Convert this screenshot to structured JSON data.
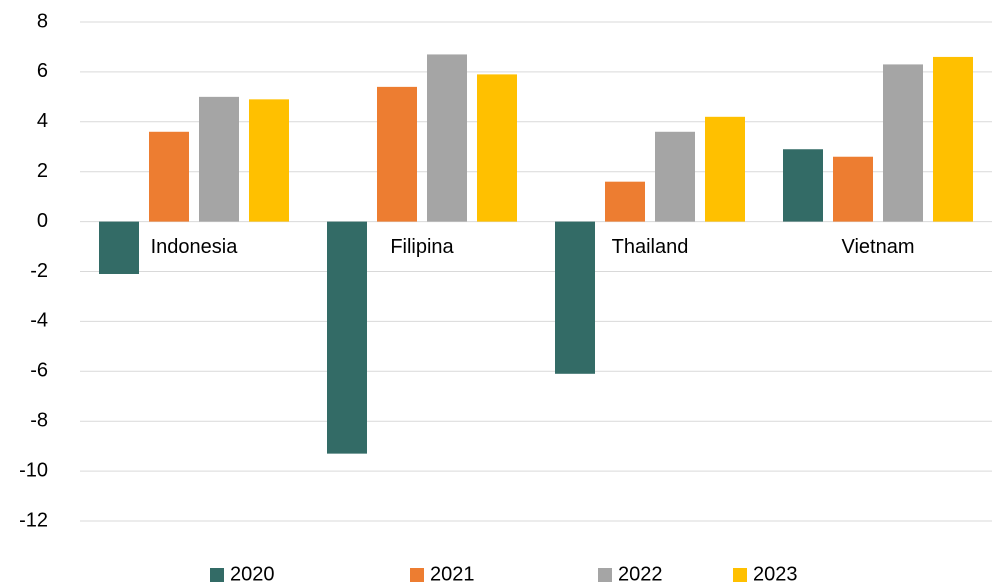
{
  "chart_data": {
    "type": "bar",
    "categories": [
      "Indonesia",
      "Filipina",
      "Thailand",
      "Vietnam"
    ],
    "series": [
      {
        "name": "2020",
        "color": "#336b66",
        "values": [
          -2.1,
          -9.3,
          -6.1,
          2.9
        ]
      },
      {
        "name": "2021",
        "color": "#ed7d31",
        "values": [
          3.6,
          5.4,
          1.6,
          2.6
        ]
      },
      {
        "name": "2022",
        "color": "#a5a5a5",
        "values": [
          5.0,
          6.7,
          3.6,
          6.3
        ]
      },
      {
        "name": "2023",
        "color": "#ffc000",
        "values": [
          4.9,
          5.9,
          4.2,
          6.6
        ]
      }
    ],
    "ylim": [
      -12,
      8
    ],
    "yticks": [
      -12,
      -10,
      -8,
      -6,
      -4,
      -2,
      0,
      2,
      4,
      6,
      8
    ],
    "grid": true,
    "legend": "bottom"
  }
}
